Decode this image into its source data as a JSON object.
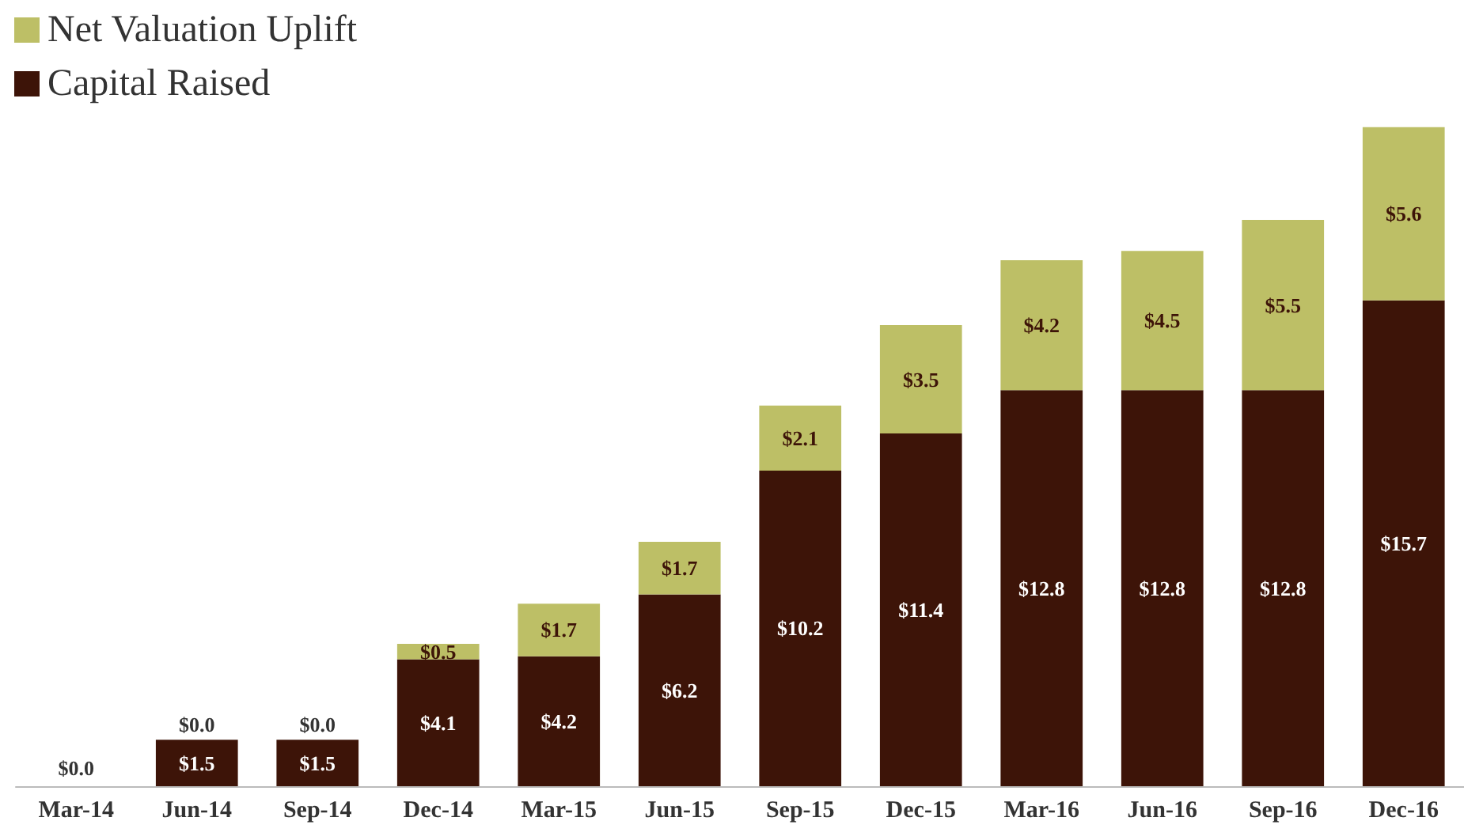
{
  "chart_data": {
    "type": "bar",
    "stacked": true,
    "legend": "top left",
    "data_labels": true,
    "categories": [
      "Mar-14",
      "Jun-14",
      "Sep-14",
      "Dec-14",
      "Mar-15",
      "Jun-15",
      "Sep-15",
      "Dec-15",
      "Mar-16",
      "Jun-16",
      "Sep-16",
      "Dec-16"
    ],
    "series": [
      {
        "name": "Capital Raised",
        "color": "#3d1408",
        "values": [
          0,
          1.5,
          1.5,
          4.1,
          4.2,
          6.2,
          10.2,
          11.4,
          12.8,
          12.8,
          12.8,
          15.7
        ],
        "value_labels": [
          "$0.0",
          "$1.5",
          "$1.5",
          "$4.1",
          "$4.2",
          "$6.2",
          "$10.2",
          "$11.4",
          "$12.8",
          "$12.8",
          "$12.8",
          "$15.7"
        ]
      },
      {
        "name": "Net Valuation Uplift",
        "color": "#bdbf66",
        "values": [
          null,
          0,
          0,
          0.5,
          1.7,
          1.7,
          2.1,
          3.5,
          4.2,
          4.5,
          5.5,
          5.6
        ],
        "value_labels": [
          null,
          "$0.0",
          "$0.0",
          "$0.5",
          "$1.7",
          "$1.7",
          "$2.1",
          "$3.5",
          "$4.2",
          "$4.5",
          "$5.5",
          "$5.6"
        ]
      }
    ]
  }
}
